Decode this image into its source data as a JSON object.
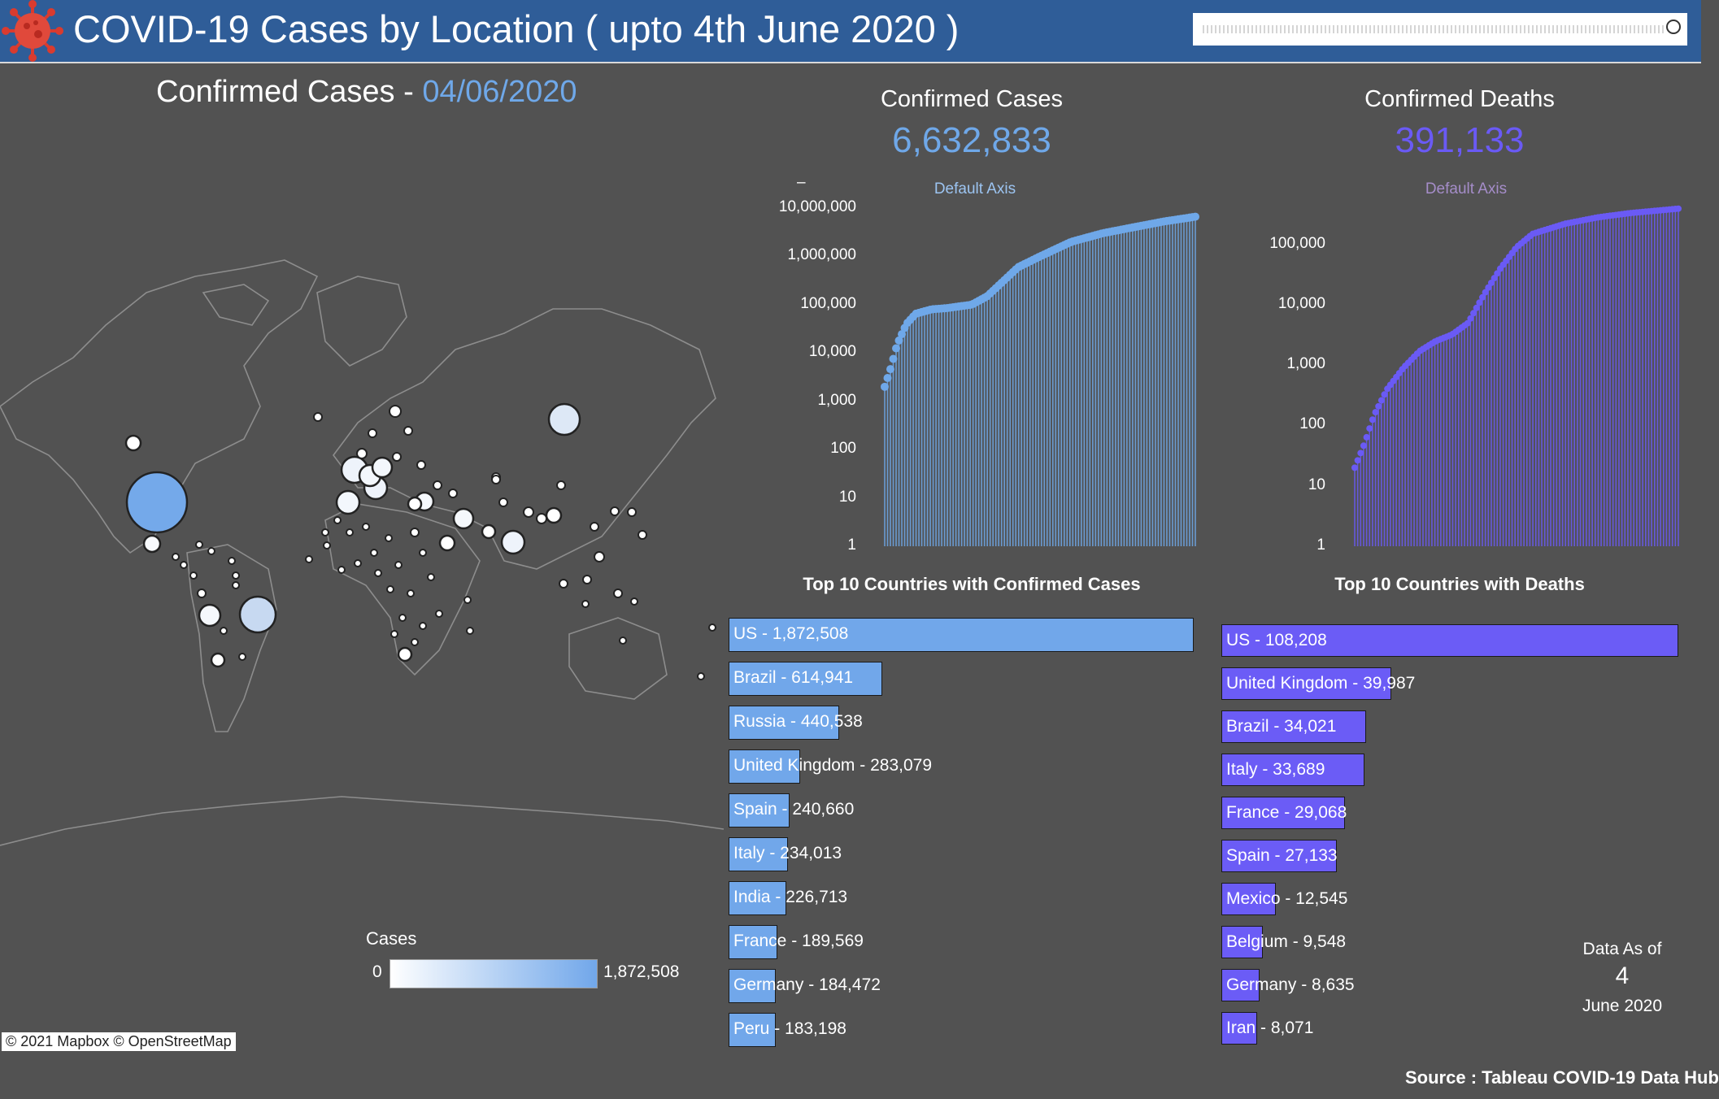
{
  "header": {
    "title": "COVID-19 Cases by Location ( upto 4th June 2020 )",
    "virus_icon": "virus-icon"
  },
  "map": {
    "heading": "Confirmed Cases - ",
    "date": "04/06/2020",
    "legend_title": "Cases",
    "legend_min": "0",
    "legend_max": "1,872,508",
    "legend_colors": [
      "#ffffff",
      "#71a7ea"
    ],
    "credit": "© 2021 Mapbox  © OpenStreetMap"
  },
  "kpis": {
    "confirmed_title": "Confirmed Cases",
    "confirmed_value": "6,632,833",
    "deaths_title": "Confirmed Deaths",
    "deaths_value": "391,133",
    "axis_note": "Default Axis",
    "dash": "–"
  },
  "colors": {
    "cases": "#6fa8e9",
    "deaths": "#6a5af5",
    "cases_bar": "#71a7ea",
    "deaths_bar": "#6b5cf6"
  },
  "chart_data": [
    {
      "type": "area",
      "title": "Confirmed Cases",
      "scale": "log",
      "y_ticks": [
        "10,000,000",
        "1,000,000",
        "100,000",
        "10,000",
        "1,000",
        "100",
        "10",
        "1"
      ],
      "ylim": [
        1,
        10000000
      ],
      "points": [
        [
          0,
          2000
        ],
        [
          0.02,
          5000
        ],
        [
          0.04,
          15000
        ],
        [
          0.07,
          40000
        ],
        [
          0.1,
          65000
        ],
        [
          0.15,
          80000
        ],
        [
          0.2,
          85000
        ],
        [
          0.28,
          100000
        ],
        [
          0.33,
          150000
        ],
        [
          0.38,
          300000
        ],
        [
          0.43,
          600000
        ],
        [
          0.5,
          1000000
        ],
        [
          0.6,
          2000000
        ],
        [
          0.7,
          3000000
        ],
        [
          0.8,
          4000000
        ],
        [
          0.9,
          5300000
        ],
        [
          1,
          6632833
        ]
      ]
    },
    {
      "type": "area",
      "title": "Confirmed Deaths",
      "scale": "log",
      "y_ticks": [
        "100,000",
        "10,000",
        "1,000",
        "100",
        "10",
        "1"
      ],
      "ylim": [
        1,
        400000
      ],
      "points": [
        [
          0,
          20
        ],
        [
          0.03,
          50
        ],
        [
          0.06,
          150
        ],
        [
          0.1,
          400
        ],
        [
          0.15,
          900
        ],
        [
          0.2,
          1700
        ],
        [
          0.25,
          2500
        ],
        [
          0.3,
          3200
        ],
        [
          0.35,
          5000
        ],
        [
          0.4,
          15000
        ],
        [
          0.45,
          40000
        ],
        [
          0.5,
          90000
        ],
        [
          0.55,
          150000
        ],
        [
          0.65,
          220000
        ],
        [
          0.75,
          280000
        ],
        [
          0.85,
          330000
        ],
        [
          1,
          391133
        ]
      ]
    },
    {
      "type": "bar",
      "title": "Top 10 Countries with Confirmed Cases",
      "items": [
        {
          "label": "US - 1,872,508",
          "value": 1872508
        },
        {
          "label": "Brazil - 614,941",
          "value": 614941
        },
        {
          "label": "Russia - 440,538",
          "value": 440538
        },
        {
          "label": "United Kingdom - 283,079",
          "value": 283079
        },
        {
          "label": "Spain - 240,660",
          "value": 240660
        },
        {
          "label": "Italy - 234,013",
          "value": 234013
        },
        {
          "label": "India - 226,713",
          "value": 226713
        },
        {
          "label": "France - 189,569",
          "value": 189569
        },
        {
          "label": "Germany - 184,472",
          "value": 184472
        },
        {
          "label": "Peru - 183,198",
          "value": 183198
        }
      ]
    },
    {
      "type": "bar",
      "title": "Top 10 Countries with Deaths",
      "items": [
        {
          "label": "US - 108,208",
          "value": 108208
        },
        {
          "label": "United Kingdom - 39,987",
          "value": 39987
        },
        {
          "label": "Brazil - 34,021",
          "value": 34021
        },
        {
          "label": "Italy - 33,689",
          "value": 33689
        },
        {
          "label": "France - 29,068",
          "value": 29068
        },
        {
          "label": "Spain - 27,133",
          "value": 27133
        },
        {
          "label": "Mexico - 12,545",
          "value": 12545
        },
        {
          "label": "Belgium - 9,548",
          "value": 9548
        },
        {
          "label": "Germany - 8,635",
          "value": 8635
        },
        {
          "label": "Iran - 8,071",
          "value": 8071
        }
      ]
    }
  ],
  "data_as_of": {
    "label": "Data As of",
    "day": "4",
    "month": "June 2020"
  },
  "source": "Source : Tableau COVID-19 Data Hub"
}
